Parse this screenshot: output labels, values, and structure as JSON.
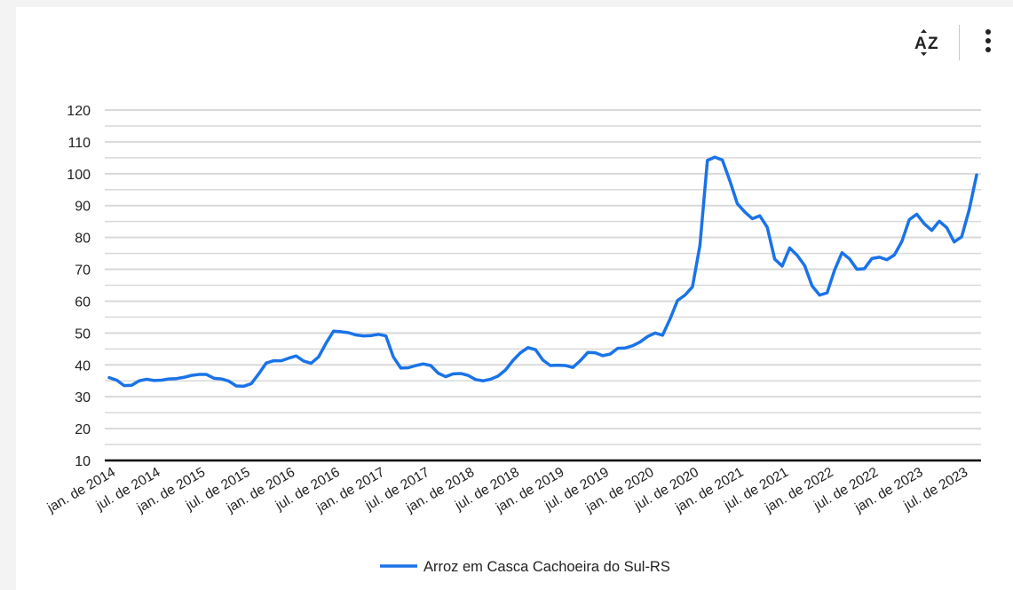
{
  "toolbar": {
    "sort_icon": "sort-az-icon",
    "more_icon": "more-vert-icon"
  },
  "colors": {
    "series": "#1a73e8",
    "grid": "#d9d9d9",
    "axis": "#000000",
    "text": "#222222"
  },
  "chart_data": {
    "type": "line",
    "title": "",
    "xlabel": "",
    "ylabel": "",
    "ylim": [
      10,
      120
    ],
    "yticks": [
      10,
      20,
      30,
      40,
      50,
      60,
      70,
      80,
      90,
      100,
      110,
      120
    ],
    "grid": true,
    "legend_position": "bottom",
    "x_tick_labels": [
      "jan. de 2014",
      "jul. de 2014",
      "jan. de 2015",
      "jul. de 2015",
      "jan. de 2016",
      "jul. de 2016",
      "jan. de 2017",
      "jul. de 2017",
      "jan. de 2018",
      "jul. de 2018",
      "jan. de 2019",
      "jul. de 2019",
      "jan. de 2020",
      "jul. de 2020",
      "jan. de 2021",
      "jul. de 2021",
      "jan. de 2022",
      "jul. de 2022",
      "jan. de 2023",
      "jul. de 2023"
    ],
    "series": [
      {
        "name": "Arroz em Casca Cachoeira do Sul-RS",
        "start": "2014-01",
        "values": [
          36.0,
          35.2,
          33.5,
          33.6,
          35.0,
          35.5,
          35.1,
          35.2,
          35.6,
          35.7,
          36.1,
          36.7,
          37.0,
          37.0,
          35.8,
          35.6,
          34.9,
          33.4,
          33.3,
          34.1,
          37.2,
          40.6,
          41.3,
          41.3,
          42.1,
          42.8,
          41.2,
          40.5,
          42.5,
          46.8,
          50.6,
          50.4,
          50.1,
          49.4,
          49.1,
          49.2,
          49.6,
          49.1,
          42.5,
          39.0,
          39.1,
          39.8,
          40.3,
          39.8,
          37.4,
          36.3,
          37.2,
          37.3,
          36.7,
          35.4,
          35.0,
          35.5,
          36.5,
          38.4,
          41.4,
          43.8,
          45.4,
          44.8,
          41.5,
          39.8,
          39.9,
          39.8,
          39.2,
          41.3,
          43.9,
          43.8,
          42.9,
          43.4,
          45.2,
          45.3,
          46.0,
          47.2,
          48.9,
          50.0,
          49.3,
          54.4,
          60.2,
          61.9,
          64.5,
          77.5,
          104.2,
          105.2,
          104.3,
          97.8,
          90.6,
          88.0,
          85.9,
          86.8,
          83.2,
          73.2,
          71.0,
          76.7,
          74.4,
          71.2,
          64.8,
          61.9,
          62.6,
          69.7,
          75.2,
          73.3,
          70.0,
          70.2,
          73.4,
          73.8,
          73.0,
          74.5,
          78.7,
          85.6,
          87.3,
          84.3,
          82.2,
          85.1,
          83.1,
          78.6,
          80.2,
          88.6,
          99.6
        ]
      }
    ]
  }
}
